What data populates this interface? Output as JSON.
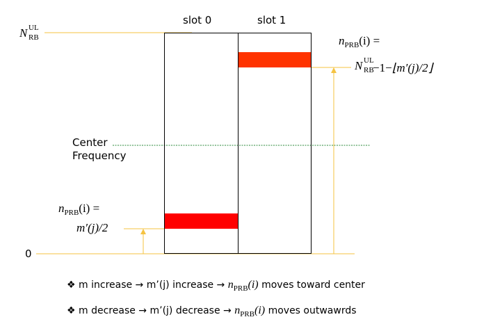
{
  "slots": [
    "slot 0",
    "slot 1"
  ],
  "nrb_label": {
    "base": "N",
    "sup": "UL",
    "sub": "RB"
  },
  "center_label": [
    "Center",
    "Frequency"
  ],
  "zero_label": "0",
  "eq_top": {
    "lhs": "n",
    "lhs_sub": "PRB",
    "lhs_arg": "(i) =",
    "rhs_minus": "−1−",
    "rhs_floor": "⌊m′(j)/2⌋"
  },
  "eq_bottom": {
    "lhs": "n",
    "lhs_sub": "PRB",
    "lhs_arg": "(i) =",
    "rhs": "m′(j)/2"
  },
  "bullets": [
    {
      "marker": "❖",
      "pre": "m increase → m’(j) increase → ",
      "n": "n",
      "sub": "PRB",
      "arg": "(i)",
      "post": " moves toward center"
    },
    {
      "marker": "❖",
      "pre": "m decrease → m’(j) decrease → ",
      "n": "n",
      "sub": "PRB",
      "arg": "(i)",
      "post": " moves outwawrds"
    }
  ],
  "colors": {
    "guide": "#f5c342",
    "center_line": "#2a8a3a",
    "block_top": "#ff3300",
    "block_bottom": "#ff0000",
    "box": "#000000"
  }
}
